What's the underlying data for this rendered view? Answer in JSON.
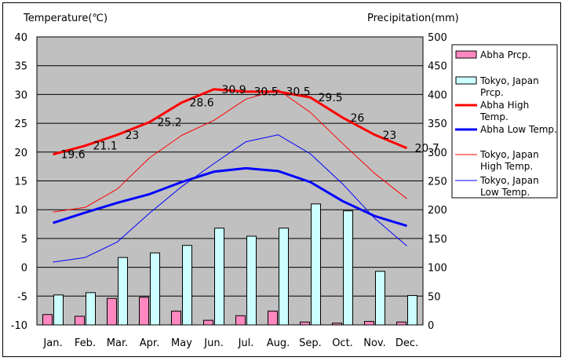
{
  "chart_data": {
    "type": "bar+line",
    "y_left_label": "Temperature(℃)",
    "y_right_label": "Precipitation(mm)",
    "y_left_ticks": [
      "40",
      "35",
      "30",
      "25",
      "20",
      "15",
      "10",
      "5",
      "0",
      "-5",
      "-10"
    ],
    "y_right_ticks": [
      "500",
      "450",
      "400",
      "350",
      "300",
      "250",
      "200",
      "150",
      "100",
      "50",
      "0"
    ],
    "ylim_left": [
      -10,
      40
    ],
    "ylim_right": [
      0,
      500
    ],
    "categories": [
      "Jan.",
      "Feb.",
      "Mar.",
      "Apr.",
      "May",
      "Jun.",
      "Jul.",
      "Aug.",
      "Sep.",
      "Oct.",
      "Nov.",
      "Dec."
    ],
    "bars": [
      {
        "name": "Abha Prcp.",
        "color": "#ff88c0",
        "values": [
          18,
          15,
          46,
          48,
          24,
          8,
          16,
          24,
          5,
          3,
          6,
          5
        ]
      },
      {
        "name": "Tokyo, Japan Prcp.",
        "color": "#ccffff",
        "values": [
          52,
          56,
          117,
          125,
          138,
          168,
          154,
          168,
          210,
          198,
          93,
          51
        ]
      }
    ],
    "lines": [
      {
        "name": "Abha High Temp.",
        "color": "#ff0000",
        "width": 3,
        "values": [
          19.6,
          21.1,
          23,
          25.2,
          28.6,
          30.9,
          30.5,
          30.5,
          29.5,
          26,
          23,
          20.7
        ],
        "labels": [
          "19.6",
          "21.1",
          "23",
          "25.2",
          "28.6",
          "30.9",
          "30.5",
          "30.5",
          "29.5",
          "26",
          "23",
          "20.7"
        ]
      },
      {
        "name": "Abha Low Temp.",
        "color": "#0000ff",
        "width": 3,
        "values": [
          7.7,
          9.5,
          11.2,
          12.7,
          14.8,
          16.6,
          17.2,
          16.7,
          14.8,
          11.5,
          8.9,
          7.2
        ]
      },
      {
        "name": "Tokyo, Japan High Temp.",
        "color": "#ff0000",
        "width": 1,
        "values": [
          9.6,
          10.4,
          13.6,
          19.0,
          22.9,
          25.5,
          29.2,
          30.8,
          26.9,
          21.5,
          16.3,
          11.9
        ]
      },
      {
        "name": "Tokyo, Japan Low Temp.",
        "color": "#0000ff",
        "width": 1,
        "values": [
          0.9,
          1.7,
          4.4,
          9.4,
          14.0,
          18.0,
          21.8,
          23.0,
          19.7,
          14.5,
          8.5,
          3.7
        ]
      }
    ],
    "legend_position": "right",
    "legend": [
      {
        "name": "Abha Prcp.",
        "lines": [
          "Abha Prcp."
        ],
        "type": "box",
        "color": "#ff88c0"
      },
      {
        "name": "Tokyo, Japan Prcp.",
        "lines": [
          "Tokyo, Japan",
          "Prcp."
        ],
        "type": "box",
        "color": "#ccffff"
      },
      {
        "name": "Abha High Temp.",
        "lines": [
          "Abha High",
          "Temp."
        ],
        "type": "line",
        "color": "#ff0000",
        "width": 3
      },
      {
        "name": "Abha Low Temp.",
        "lines": [
          "Abha Low Temp."
        ],
        "type": "line",
        "color": "#0000ff",
        "width": 3
      },
      {
        "name": "Tokyo, Japan High Temp.",
        "lines": [
          "Tokyo, Japan",
          "High Temp."
        ],
        "type": "line",
        "color": "#ff0000",
        "width": 1
      },
      {
        "name": "Tokyo, Japan Low Temp.",
        "lines": [
          "Tokyo, Japan",
          "Low Temp."
        ],
        "type": "line",
        "color": "#0000ff",
        "width": 1
      }
    ],
    "plot_background": "#c0c0c0",
    "grid": "horizontal"
  }
}
